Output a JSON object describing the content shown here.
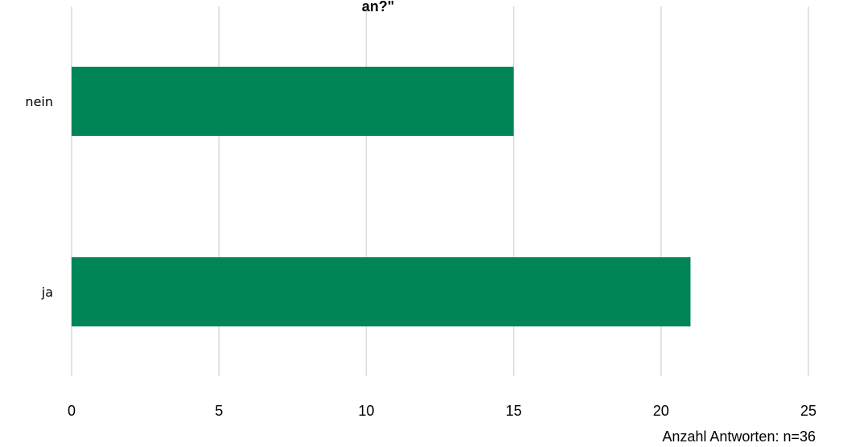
{
  "chart_data": {
    "type": "bar",
    "orientation": "horizontal",
    "title_fragment": "an?\"",
    "categories": [
      "nein",
      "ja"
    ],
    "values": [
      15,
      21
    ],
    "xlim": [
      0,
      25
    ],
    "xticks": [
      0,
      5,
      10,
      15,
      20,
      25
    ],
    "grid": true,
    "note": "Anzahl Antworten: n=36",
    "colors": {
      "bar": "#008556",
      "grid": "#d9d9d9"
    }
  }
}
